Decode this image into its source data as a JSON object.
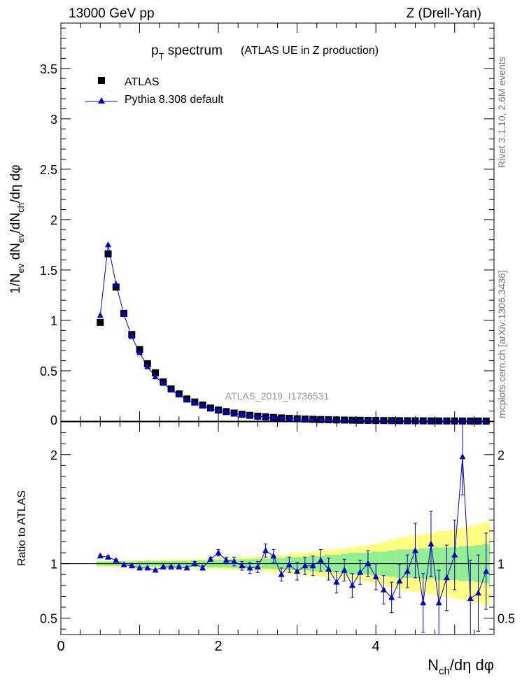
{
  "header": {
    "left": "13000 GeV pp",
    "right": "Z (Drell-Yan)"
  },
  "side_labels": {
    "rivet": "Rivet 3.1.10, 2.6M events",
    "mcplots": "mcplots.cern.ch [arXiv:1306.3436]"
  },
  "watermark": "ATLAS_2019_I1736531",
  "chart_data": [
    {
      "type": "scatter",
      "title_main": "p",
      "title_sub": "T",
      "title_rest": " spectrum",
      "title_paren": "(ATLAS UE in Z production)",
      "ylabel": "1/N_ev dN_ev/dN_ch/dη dφ",
      "xlabel": "N_ch/dη dφ",
      "xlim": [
        0,
        5.5
      ],
      "ylim": [
        0,
        3.95
      ],
      "yticks": [
        "0.5",
        "1",
        "1.5",
        "2",
        "2.5",
        "3",
        "3.5"
      ],
      "ytick_values": [
        0.5,
        1,
        1.5,
        2,
        2.5,
        3,
        3.5
      ],
      "zero_label": "0",
      "legend_position": "top-left",
      "series": [
        {
          "name": "ATLAS",
          "marker": "square",
          "color": "#000000",
          "x": [
            0.5,
            0.6,
            0.7,
            0.8,
            0.9,
            1.0,
            1.1,
            1.2,
            1.3,
            1.4,
            1.5,
            1.6,
            1.7,
            1.8,
            1.9,
            2.0,
            2.1,
            2.2,
            2.3,
            2.4,
            2.5,
            2.6,
            2.7,
            2.8,
            2.9,
            3.0,
            3.1,
            3.2,
            3.3,
            3.4,
            3.5,
            3.6,
            3.7,
            3.8,
            3.9,
            4.0,
            4.1,
            4.2,
            4.3,
            4.4,
            4.5,
            4.6,
            4.7,
            4.8,
            4.9,
            5.0,
            5.1,
            5.2,
            5.3,
            5.4
          ],
          "y": [
            0.98,
            1.66,
            1.33,
            1.07,
            0.86,
            0.71,
            0.57,
            0.48,
            0.39,
            0.32,
            0.27,
            0.22,
            0.19,
            0.16,
            0.13,
            0.11,
            0.095,
            0.08,
            0.068,
            0.058,
            0.05,
            0.043,
            0.037,
            0.032,
            0.028,
            0.024,
            0.021,
            0.018,
            0.016,
            0.014,
            0.012,
            0.011,
            0.0095,
            0.0083,
            0.0073,
            0.0064,
            0.0056,
            0.005,
            0.0044,
            0.0039,
            0.0034,
            0.003,
            0.0027,
            0.0024,
            0.0021,
            0.0019,
            0.0017,
            0.0015,
            0.0013,
            0.0012
          ]
        },
        {
          "name": "Pythia 8.308 default",
          "marker": "triangle",
          "color": "#0000cc",
          "x": [
            0.5,
            0.6,
            0.7,
            0.8,
            0.9,
            1.0,
            1.1,
            1.2,
            1.3,
            1.4,
            1.5,
            1.6,
            1.7,
            1.8,
            1.9,
            2.0,
            2.1,
            2.2,
            2.3,
            2.4,
            2.5,
            2.6,
            2.7,
            2.8,
            2.9,
            3.0,
            3.1,
            3.2,
            3.3,
            3.4,
            3.5,
            3.6,
            3.7,
            3.8,
            3.9,
            4.0,
            4.1,
            4.2,
            4.3,
            4.4,
            4.5,
            4.6,
            4.7,
            4.8,
            4.9,
            5.0,
            5.1,
            5.2,
            5.3,
            5.4
          ],
          "y": [
            1.05,
            1.75,
            1.36,
            1.06,
            0.84,
            0.68,
            0.54,
            0.44,
            0.375,
            0.31,
            0.26,
            0.21,
            0.18,
            0.155,
            0.125,
            0.105,
            0.09,
            0.076,
            0.064,
            0.055,
            0.047,
            0.042,
            0.035,
            0.029,
            0.026,
            0.022,
            0.019,
            0.017,
            0.015,
            0.013,
            0.011,
            0.009,
            0.008,
            0.007,
            0.0065,
            0.0058,
            0.005,
            0.004,
            0.0038,
            0.0036,
            0.003,
            0.0022,
            0.0023,
            0.0015,
            0.0018,
            0.0017,
            0.0034,
            0.0011,
            0.001,
            0.0011
          ]
        }
      ]
    },
    {
      "type": "scatter",
      "ylabel": "Ratio to ATLAS",
      "xlabel": "N_ch/dη dφ",
      "xlim": [
        0,
        5.5
      ],
      "ylim": [
        0.35,
        2.3
      ],
      "reference_line": 1,
      "yticks": [
        "0.5",
        "1",
        "2"
      ],
      "ytick_values": [
        0.5,
        1,
        2
      ],
      "xticks": [
        "0",
        "2",
        "4"
      ],
      "xtick_values": [
        0,
        2,
        4
      ],
      "band_colors": {
        "inner": "#90ee90",
        "outer": "#ffff80"
      },
      "bands": {
        "x": [
          0.5,
          0.6,
          0.7,
          0.8,
          0.9,
          1.0,
          1.1,
          1.2,
          1.3,
          1.4,
          1.5,
          1.6,
          1.7,
          1.8,
          1.9,
          2.0,
          2.1,
          2.2,
          2.3,
          2.4,
          2.5,
          2.6,
          2.7,
          2.8,
          2.9,
          3.0,
          3.1,
          3.2,
          3.3,
          3.4,
          3.5,
          3.6,
          3.7,
          3.8,
          3.9,
          4.0,
          4.1,
          4.2,
          4.3,
          4.4,
          4.5,
          4.6,
          4.7,
          4.8,
          4.9,
          5.0,
          5.1,
          5.2,
          5.3,
          5.4
        ],
        "inner": [
          0.02,
          0.02,
          0.02,
          0.02,
          0.02,
          0.025,
          0.025,
          0.025,
          0.025,
          0.025,
          0.025,
          0.025,
          0.03,
          0.03,
          0.035,
          0.035,
          0.035,
          0.04,
          0.04,
          0.04,
          0.045,
          0.045,
          0.05,
          0.05,
          0.06,
          0.06,
          0.06,
          0.07,
          0.07,
          0.08,
          0.08,
          0.09,
          0.1,
          0.1,
          0.1,
          0.11,
          0.11,
          0.12,
          0.13,
          0.13,
          0.13,
          0.14,
          0.14,
          0.15,
          0.15,
          0.15,
          0.16,
          0.16,
          0.17,
          0.18
        ],
        "outer": [
          0.03,
          0.03,
          0.03,
          0.03,
          0.03,
          0.035,
          0.035,
          0.035,
          0.04,
          0.04,
          0.04,
          0.04,
          0.045,
          0.045,
          0.05,
          0.05,
          0.055,
          0.055,
          0.06,
          0.06,
          0.07,
          0.07,
          0.08,
          0.08,
          0.09,
          0.1,
          0.1,
          0.11,
          0.12,
          0.13,
          0.13,
          0.14,
          0.15,
          0.16,
          0.17,
          0.18,
          0.2,
          0.22,
          0.24,
          0.25,
          0.26,
          0.27,
          0.28,
          0.3,
          0.3,
          0.32,
          0.33,
          0.34,
          0.36,
          0.38
        ]
      },
      "series": [
        {
          "name": "Pythia 8.308 default",
          "marker": "triangle",
          "color": "#0000cc",
          "x": [
            0.5,
            0.6,
            0.7,
            0.8,
            0.9,
            1.0,
            1.1,
            1.2,
            1.3,
            1.4,
            1.5,
            1.6,
            1.7,
            1.8,
            1.9,
            2.0,
            2.1,
            2.2,
            2.3,
            2.4,
            2.5,
            2.6,
            2.7,
            2.8,
            2.9,
            3.0,
            3.1,
            3.2,
            3.3,
            3.4,
            3.5,
            3.6,
            3.7,
            3.8,
            3.9,
            4.0,
            4.1,
            4.2,
            4.3,
            4.4,
            4.5,
            4.6,
            4.7,
            4.8,
            4.9,
            5.0,
            5.1,
            5.2,
            5.3,
            5.4
          ],
          "y": [
            1.07,
            1.06,
            1.03,
            0.99,
            0.98,
            0.96,
            0.96,
            0.94,
            0.97,
            0.97,
            0.97,
            0.96,
            1.0,
            0.96,
            1.04,
            1.1,
            1.03,
            1.02,
            0.98,
            0.96,
            0.97,
            1.12,
            1.07,
            0.9,
            0.99,
            0.93,
            0.98,
            0.98,
            1.03,
            0.95,
            0.83,
            0.94,
            0.8,
            0.92,
            1.0,
            0.88,
            0.76,
            0.69,
            0.84,
            0.93,
            1.12,
            0.64,
            1.18,
            0.64,
            0.87,
            1.08,
            1.98,
            0.68,
            0.73,
            0.93
          ],
          "err": [
            0.01,
            0.01,
            0.01,
            0.01,
            0.01,
            0.01,
            0.01,
            0.01,
            0.01,
            0.01,
            0.01,
            0.015,
            0.02,
            0.02,
            0.02,
            0.03,
            0.03,
            0.04,
            0.04,
            0.05,
            0.05,
            0.06,
            0.06,
            0.06,
            0.07,
            0.08,
            0.08,
            0.09,
            0.1,
            0.1,
            0.1,
            0.1,
            0.11,
            0.11,
            0.12,
            0.12,
            0.13,
            0.14,
            0.15,
            0.15,
            0.25,
            0.27,
            0.3,
            0.3,
            0.3,
            0.32,
            0.35,
            0.35,
            0.35,
            0.35
          ]
        }
      ]
    }
  ]
}
